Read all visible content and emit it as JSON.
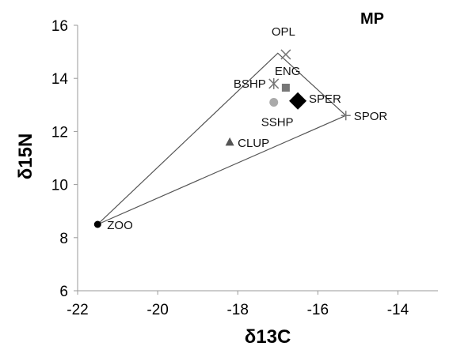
{
  "chart_data": {
    "type": "scatter",
    "title": "MP",
    "xlabel": "δ13C",
    "ylabel": "δ15N",
    "xlim": [
      -22,
      -13
    ],
    "ylim": [
      6,
      16
    ],
    "xticks": [
      "-22",
      "-20",
      "-18",
      "-16",
      "-14"
    ],
    "yticks": [
      "6",
      "8",
      "10",
      "12",
      "14",
      "16"
    ],
    "grid": false,
    "points": [
      {
        "label": "ZOO",
        "x": -21.5,
        "y": 8.5,
        "marker": "circle",
        "color": "#000000"
      },
      {
        "label": "CLUP",
        "x": -18.2,
        "y": 11.6,
        "marker": "triangle",
        "color": "#555555"
      },
      {
        "label": "SSHP",
        "x": -17.1,
        "y": 13.1,
        "marker": "circle",
        "color": "#aaaaaa"
      },
      {
        "label": "BSHP",
        "x": -17.1,
        "y": 13.8,
        "marker": "star",
        "color": "#777777"
      },
      {
        "label": "ENG",
        "x": -16.8,
        "y": 13.65,
        "marker": "square",
        "color": "#777777"
      },
      {
        "label": "OPL",
        "x": -16.8,
        "y": 14.9,
        "marker": "x",
        "color": "#777777"
      },
      {
        "label": "SPER",
        "x": -16.5,
        "y": 13.15,
        "marker": "diamond",
        "color": "#000000"
      },
      {
        "label": "SPOR",
        "x": -15.3,
        "y": 12.6,
        "marker": "plus",
        "color": "#777777"
      }
    ],
    "hull": [
      [
        -21.5,
        8.5
      ],
      [
        -17.0,
        14.95
      ],
      [
        -15.3,
        12.6
      ]
    ]
  }
}
